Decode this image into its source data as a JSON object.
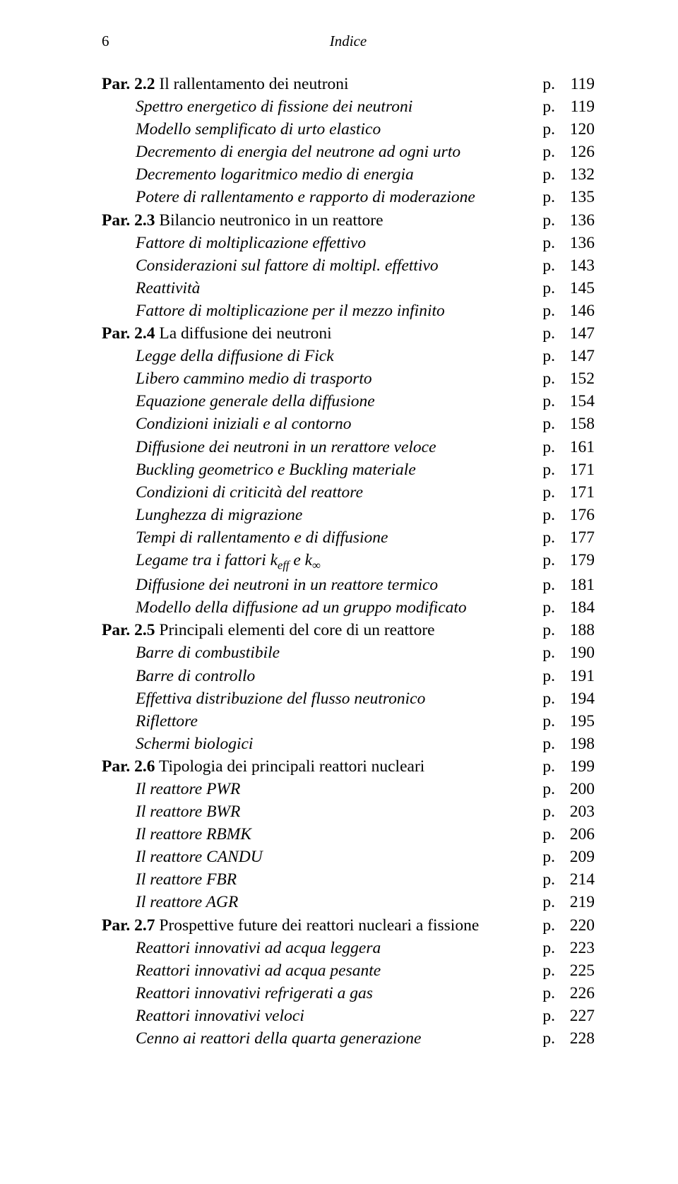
{
  "header": {
    "page_number": "6",
    "title": "Indice"
  },
  "entries": [
    {
      "indent": 0,
      "prefix_bold": "Par. 2.2",
      "rest": "Il rallentamento dei neutroni",
      "italic": false,
      "page": "119"
    },
    {
      "indent": 1,
      "text": "Spettro energetico di fissione dei neutroni",
      "italic": true,
      "page": "119"
    },
    {
      "indent": 1,
      "text": "Modello semplificato di urto elastico",
      "italic": true,
      "page": "120"
    },
    {
      "indent": 1,
      "text": "Decremento di energia del neutrone ad ogni urto",
      "italic": true,
      "page": "126"
    },
    {
      "indent": 1,
      "text": "Decremento logaritmico medio di energia",
      "italic": true,
      "page": "132"
    },
    {
      "indent": 1,
      "text": "Potere di rallentamento e rapporto di moderazione",
      "italic": true,
      "page": "135"
    },
    {
      "indent": 0,
      "prefix_bold": "Par. 2.3",
      "rest": "Bilancio neutronico in un reattore",
      "italic": false,
      "page": "136"
    },
    {
      "indent": 1,
      "text": "Fattore di moltiplicazione effettivo",
      "italic": true,
      "page": "136"
    },
    {
      "indent": 1,
      "text": "Considerazioni sul fattore di moltipl. effettivo",
      "italic": true,
      "page": "143"
    },
    {
      "indent": 1,
      "text": "Reattività",
      "italic": true,
      "page": "145"
    },
    {
      "indent": 1,
      "text": "Fattore di moltiplicazione per il mezzo infinito",
      "italic": true,
      "page": "146"
    },
    {
      "indent": 0,
      "prefix_bold": "Par. 2.4",
      "rest": "La diffusione dei neutroni",
      "italic": false,
      "page": "147"
    },
    {
      "indent": 1,
      "text": "Legge della diffusione di Fick",
      "italic": true,
      "page": "147"
    },
    {
      "indent": 1,
      "text": "Libero cammino medio di trasporto",
      "italic": true,
      "page": "152"
    },
    {
      "indent": 1,
      "text": "Equazione generale della diffusione",
      "italic": true,
      "page": "154"
    },
    {
      "indent": 1,
      "text": "Condizioni iniziali e al contorno",
      "italic": true,
      "page": "158"
    },
    {
      "indent": 1,
      "text": "Diffusione dei neutroni in un rerattore veloce",
      "italic": true,
      "page": "161"
    },
    {
      "indent": 1,
      "text": "Buckling geometrico e Buckling materiale",
      "italic": true,
      "page": "171"
    },
    {
      "indent": 1,
      "text": "Condizioni di criticità del reattore",
      "italic": true,
      "page": "171"
    },
    {
      "indent": 1,
      "text": "Lunghezza di migrazione",
      "italic": true,
      "page": "176"
    },
    {
      "indent": 1,
      "text": "Tempi di rallentamento e di diffusione",
      "italic": true,
      "page": "177"
    },
    {
      "indent": 1,
      "html": "Legame tra i fattori k<sub>eff</sub>  e k<sub>&infin;</sub>",
      "italic": true,
      "page": "179"
    },
    {
      "indent": 1,
      "text": "Diffusione dei neutroni in un reattore termico",
      "italic": true,
      "page": "181"
    },
    {
      "indent": 1,
      "text": "Modello della diffusione ad un gruppo modificato",
      "italic": true,
      "page": "184"
    },
    {
      "indent": 0,
      "prefix_bold": "Par. 2.5",
      "rest": "Principali elementi del core di un reattore",
      "italic": false,
      "page": "188"
    },
    {
      "indent": 1,
      "text": "Barre di combustibile",
      "italic": true,
      "page": "190"
    },
    {
      "indent": 1,
      "text": "Barre di controllo",
      "italic": true,
      "page": "191"
    },
    {
      "indent": 1,
      "text": "Effettiva distribuzione del flusso neutronico",
      "italic": true,
      "page": "194"
    },
    {
      "indent": 1,
      "text": "Riflettore",
      "italic": true,
      "page": "195"
    },
    {
      "indent": 1,
      "text": "Schermi biologici",
      "italic": true,
      "page": "198"
    },
    {
      "indent": 0,
      "prefix_bold": "Par. 2.6",
      "rest": "Tipologia dei principali reattori nucleari",
      "italic": false,
      "page": "199"
    },
    {
      "indent": 1,
      "text": "Il reattore PWR",
      "italic": true,
      "page": "200"
    },
    {
      "indent": 1,
      "text": "Il reattore BWR",
      "italic": true,
      "page": "203"
    },
    {
      "indent": 1,
      "text": "Il reattore RBMK",
      "italic": true,
      "page": "206"
    },
    {
      "indent": 1,
      "text": "Il reattore CANDU",
      "italic": true,
      "page": "209"
    },
    {
      "indent": 1,
      "text": "Il reattore FBR",
      "italic": true,
      "page": "214"
    },
    {
      "indent": 1,
      "text": "Il reattore AGR",
      "italic": true,
      "page": "219"
    },
    {
      "indent": 0,
      "prefix_bold": "Par. 2.7",
      "rest": "Prospettive future dei reattori nucleari a fissione",
      "italic": false,
      "page": "220"
    },
    {
      "indent": 1,
      "text": "Reattori innovativi ad acqua leggera",
      "italic": true,
      "page": "223"
    },
    {
      "indent": 1,
      "text": "Reattori innovativi ad acqua pesante",
      "italic": true,
      "page": "225"
    },
    {
      "indent": 1,
      "text": "Reattori innovativi refrigerati a gas",
      "italic": true,
      "page": "226"
    },
    {
      "indent": 1,
      "text": "Reattori innovativi veloci",
      "italic": true,
      "page": "227"
    },
    {
      "indent": 1,
      "text": "Cenno ai reattori della quarta generazione",
      "italic": true,
      "page": "228"
    }
  ],
  "page_prefix": "p."
}
